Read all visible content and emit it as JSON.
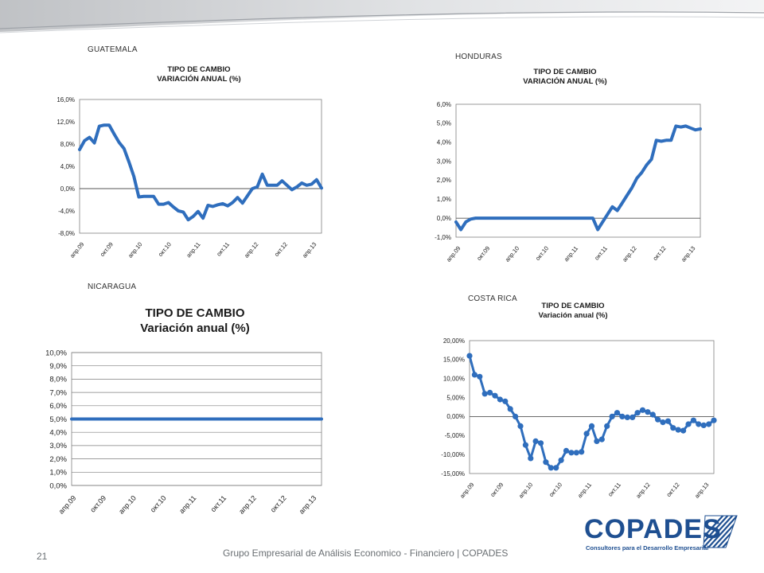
{
  "footer": {
    "page_number": "21",
    "text": "Grupo Empresarial de Análisis Economico - Financiero | COPADES"
  },
  "logo": {
    "name": "COPADES",
    "tagline": "Consultores para el Desarrollo Empresarial",
    "color": "#1e4f91"
  },
  "colors": {
    "line": "#2f6ebd",
    "grid": "#7f7f7f",
    "axis": "#555555"
  },
  "panels": [
    {
      "country": "GUATEMALA",
      "title_line1": "TIPO DE CAMBIO",
      "title_line2": "VARIACIÓN ANUAL (%)"
    },
    {
      "country": "HONDURAS",
      "title_line1": "TIPO DE CAMBIO",
      "title_line2": "VARIACIÓN ANUAL (%)"
    },
    {
      "country": "NICARAGUA",
      "title_line1": "TIPO DE CAMBIO",
      "title_line2": "Variación anual (%)"
    },
    {
      "country": "COSTA RICA",
      "title_line1": "TIPO DE CAMBIO",
      "title_line2": "Variación anual (%)"
    }
  ],
  "chart_data": [
    {
      "type": "line",
      "title": "TIPO DE CAMBIO VARIACIÓN ANUAL (%)",
      "x_tick_labels": [
        "апр.09",
        "окт.09",
        "апр.10",
        "окт.10",
        "апр.11",
        "окт.11",
        "апр.12",
        "окт.12",
        "апр.13"
      ],
      "y_tick_labels": [
        "16,0%",
        "12,0%",
        "8,0%",
        "4,0%",
        "0,0%",
        "-4,0%",
        "-8,0%"
      ],
      "ylim": [
        -8,
        16
      ],
      "markers": false,
      "series": [
        {
          "values": [
            7,
            8.6,
            9.2,
            8.2,
            11.2,
            11.4,
            11.4,
            9.8,
            8.3,
            7.2,
            4.8,
            2.2,
            -1.5,
            -1.4,
            -1.4,
            -1.4,
            -2.8,
            -2.8,
            -2.5,
            -3.3,
            -4,
            -4.2,
            -5.6,
            -5,
            -4.1,
            -5.3,
            -3,
            -3.2,
            -2.9,
            -2.7,
            -3.1,
            -2.5,
            -1.6,
            -2.6,
            -1.3,
            0,
            0.3,
            2.6,
            0.6,
            0.6,
            0.6,
            1.4,
            0.6,
            -0.2,
            0.3,
            1,
            0.6,
            0.8,
            1.6,
            0.1
          ]
        }
      ]
    },
    {
      "type": "line",
      "title": "TIPO DE CAMBIO VARIACIÓN ANUAL (%)",
      "x_tick_labels": [
        "апр.09",
        "окт.09",
        "апр.10",
        "окт.10",
        "апр.11",
        "окт.11",
        "апр.12",
        "окт.12",
        "апр.13"
      ],
      "y_tick_labels": [
        "6,0%",
        "5,0%",
        "4,0%",
        "3,0%",
        "2,0%",
        "1,0%",
        "0,0%",
        "-1,0%"
      ],
      "ylim": [
        -1,
        6
      ],
      "markers": false,
      "series": [
        {
          "values": [
            -0.2,
            -0.6,
            -0.2,
            -0.05,
            0,
            0,
            0,
            0,
            0,
            0,
            0,
            0,
            0,
            0,
            0,
            0,
            0,
            0,
            0,
            0,
            0,
            0,
            0,
            0,
            0,
            0,
            0,
            0,
            0,
            -0.6,
            -0.2,
            0.2,
            0.6,
            0.4,
            0.8,
            1.2,
            1.6,
            2.1,
            2.4,
            2.8,
            3.1,
            4.1,
            4.05,
            4.1,
            4.1,
            4.85,
            4.8,
            4.85,
            4.75,
            4.65,
            4.7
          ]
        }
      ]
    },
    {
      "type": "line",
      "title": "TIPO DE CAMBIO Variación anual (%)",
      "x_tick_labels": [
        "апр.09",
        "окт.09",
        "апр.10",
        "окт.10",
        "апр.11",
        "окт.11",
        "апр.12",
        "окт.12",
        "апр.13"
      ],
      "y_tick_labels": [
        "10,0%",
        "9,0%",
        "8,0%",
        "7,0%",
        "6,0%",
        "5,0%",
        "4,0%",
        "3,0%",
        "2,0%",
        "1,0%",
        "0,0%"
      ],
      "ylim": [
        0,
        10
      ],
      "markers": false,
      "series": [
        {
          "values": [
            5,
            5,
            5,
            5,
            5,
            5,
            5,
            5,
            5,
            5
          ]
        }
      ]
    },
    {
      "type": "line",
      "title": "TIPO DE CAMBIO Variación anual (%)",
      "x_tick_labels": [
        "апр.09",
        "окт.09",
        "апр.10",
        "окт.10",
        "апр.11",
        "окт.11",
        "апр.12",
        "окт.12",
        "апр.13"
      ],
      "y_tick_labels": [
        "20,00%",
        "15,00%",
        "10,00%",
        "5,00%",
        "0,00%",
        "-5,00%",
        "-10,00%",
        "-15,00%"
      ],
      "ylim": [
        -15,
        20
      ],
      "markers": true,
      "series": [
        {
          "values": [
            16,
            11,
            10.5,
            6,
            6.3,
            5.5,
            4.5,
            4,
            2,
            0,
            -2.5,
            -7.5,
            -11,
            -6.5,
            -7,
            -12,
            -13.5,
            -13.5,
            -11.5,
            -9,
            -9.5,
            -9.5,
            -9.3,
            -4.5,
            -2.5,
            -6.5,
            -6,
            -2.5,
            0,
            1,
            0,
            -0.2,
            -0.2,
            1,
            1.7,
            1.2,
            0.5,
            -0.8,
            -1.5,
            -1.2,
            -3,
            -3.5,
            -3.7,
            -2,
            -1,
            -2,
            -2.3,
            -2,
            -1
          ]
        }
      ]
    }
  ]
}
